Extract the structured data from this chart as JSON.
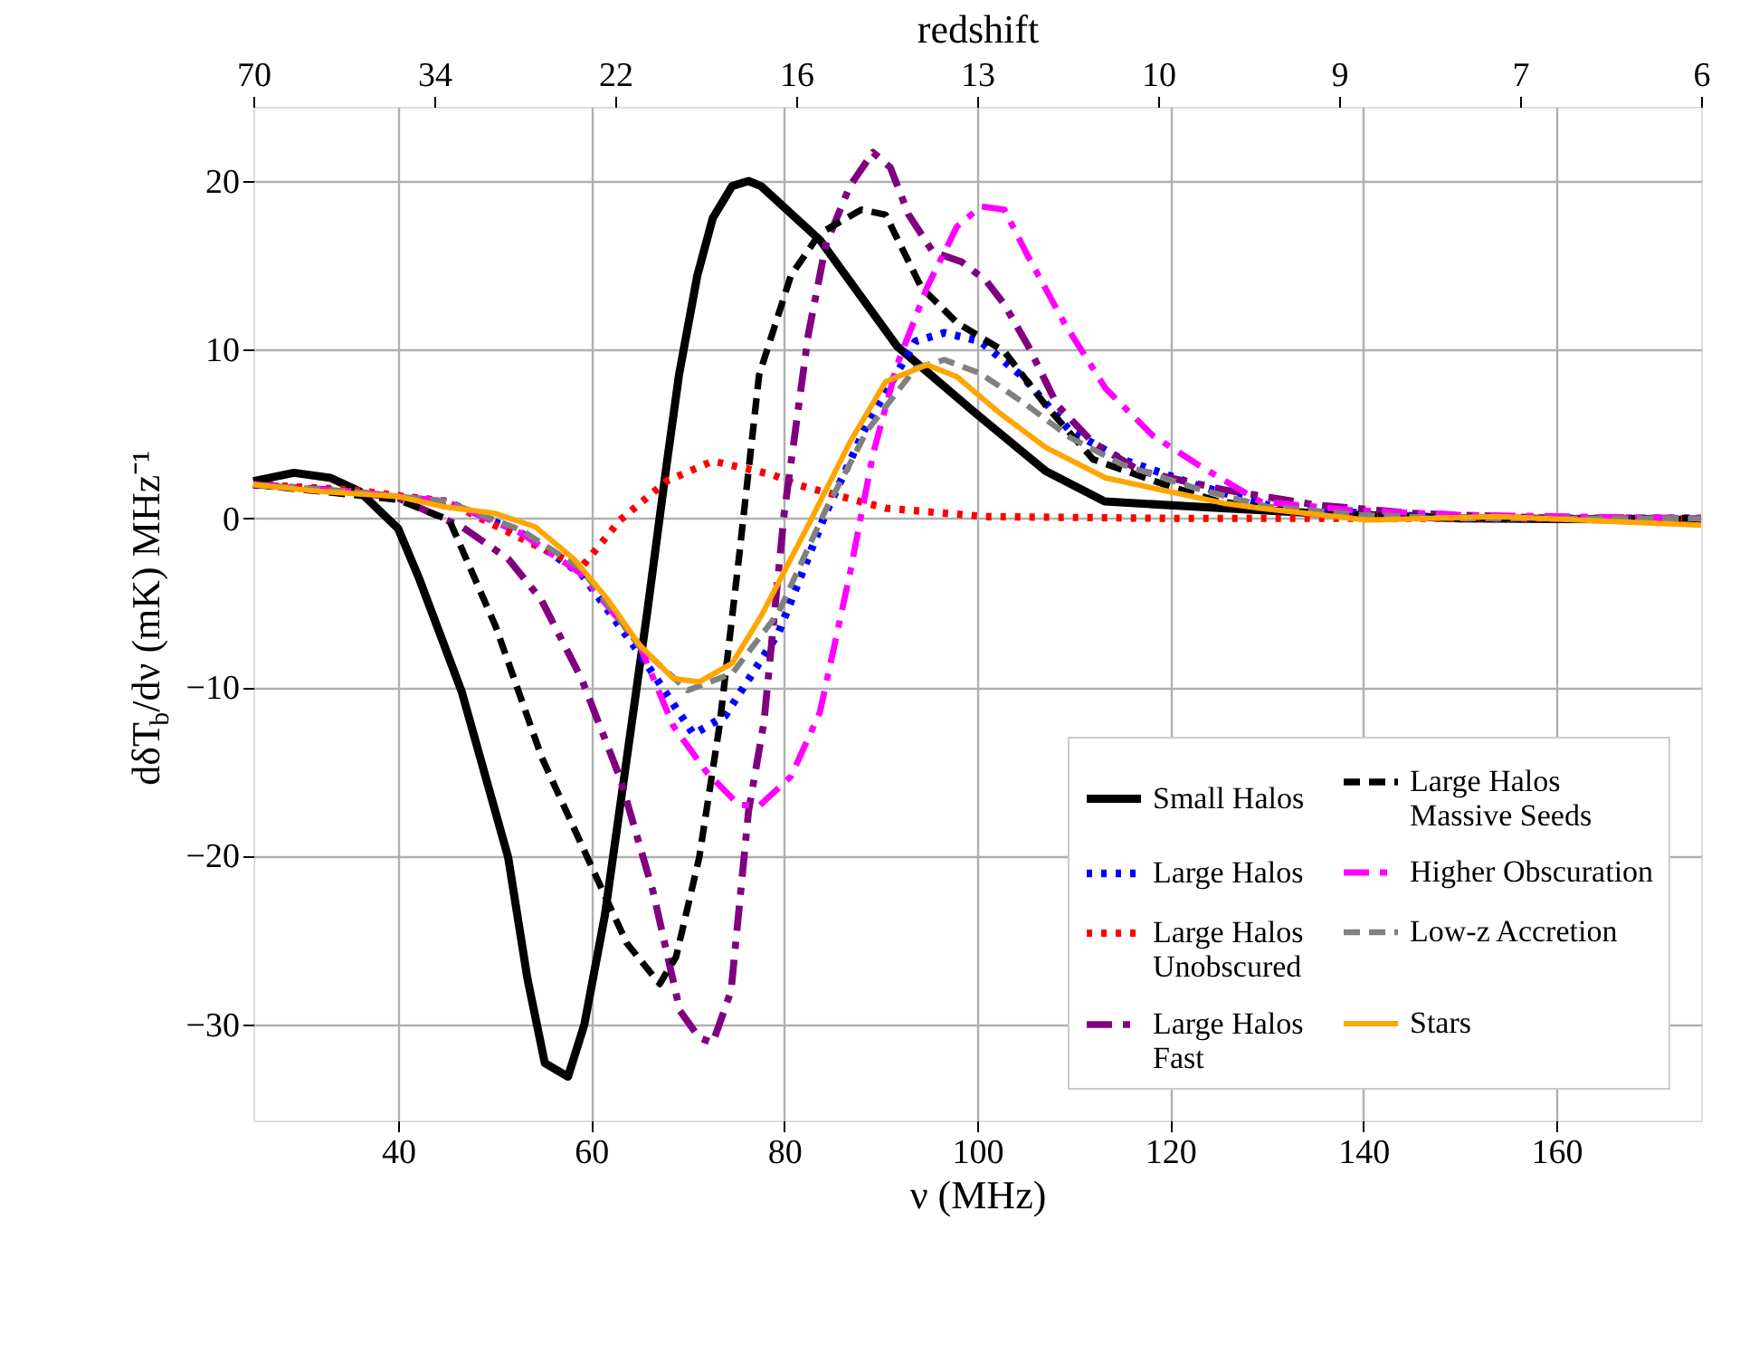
{
  "chart_data": {
    "type": "line",
    "xlabel": "ν (MHz)",
    "ylabel": "dδT$_{b}$/dν (mK) MHz⁻¹",
    "x2label": "redshift",
    "xlim": [
      25,
      175
    ],
    "xticks": [
      40,
      60,
      80,
      100,
      120,
      140,
      160
    ],
    "ylim": [
      -35.7,
      24.4
    ],
    "yticks": [
      -30,
      -20,
      -10,
      0,
      10,
      20
    ],
    "annotations": [
      "70",
      "34",
      "22",
      "16",
      "13",
      "10",
      "9",
      "7",
      "6"
    ],
    "grid": true,
    "legend": "bottom right",
    "marker": "none",
    "series": [
      {
        "name": "Small Halos",
        "color": "#000000",
        "line_style": "solid",
        "x": [
          25,
          29.2,
          33,
          36,
          40,
          42.2,
          46.6,
          51.4,
          53.4,
          55.2,
          57.6,
          59.3,
          61.4,
          63.7,
          65.8,
          67.8,
          69.1,
          71,
          72.6,
          74.6,
          76.3,
          77.6,
          83.7,
          91.7,
          99.7,
          107.1,
          113.2,
          125.5,
          135,
          150,
          175
        ],
        "values": [
          2.2,
          2.7,
          2.4,
          1.6,
          -0.6,
          -3.6,
          -10.3,
          -20.1,
          -27.3,
          -32.3,
          -33.1,
          -30.0,
          -23.6,
          -14.2,
          -5.6,
          3.1,
          8.5,
          14.4,
          17.8,
          19.7,
          20.0,
          19.7,
          16.5,
          10.2,
          6.3,
          2.8,
          1.0,
          0.6,
          0.3,
          0.0,
          -0.1
        ]
      },
      {
        "name": "Large Halos",
        "color": "#0000ff",
        "line_style": "dotted",
        "x": [
          25,
          35,
          45,
          52.8,
          59,
          65,
          70.6,
          73.9,
          79.4,
          84.3,
          88.6,
          93.6,
          96.6,
          100.3,
          104.7,
          109.6,
          115,
          123.1,
          130,
          140,
          150,
          175
        ],
        "values": [
          2.0,
          1.6,
          1.0,
          -0.9,
          -3.3,
          -8.0,
          -12.8,
          -11.7,
          -6.8,
          0.3,
          5.6,
          10.5,
          11.0,
          10.5,
          8.4,
          5.2,
          3.5,
          1.9,
          0.8,
          0.3,
          0.0,
          0.0
        ]
      },
      {
        "name": "Large Halos Unobscured",
        "color": "#ff0000",
        "line_style": "dotted",
        "x": [
          25,
          35,
          45,
          52.8,
          59,
          63,
          67.8,
          72.6,
          78.7,
          81.3,
          90.5,
          100.9,
          120,
          150,
          175
        ],
        "values": [
          2.0,
          1.7,
          1.0,
          -1.2,
          -2.9,
          -0.1,
          2.2,
          3.4,
          2.6,
          2.0,
          0.6,
          0.1,
          0.0,
          0.0,
          0.0
        ]
      },
      {
        "name": "Large Halos Fast",
        "color": "#800080",
        "line_style": "dashdot",
        "x": [
          25,
          35,
          40,
          46.6,
          51.4,
          54.8,
          59,
          63,
          66.4,
          69.2,
          71.2,
          72.6,
          74.5,
          76.3,
          77.9,
          80,
          82.5,
          84.3,
          86.8,
          89.2,
          91,
          92.9,
          95.4,
          98.4,
          100.9,
          102.8,
          105.3,
          108.3,
          112,
          116.9,
          125.5,
          135,
          145,
          160,
          175
        ],
        "values": [
          2.0,
          1.6,
          1.2,
          -0.5,
          -2.4,
          -4.8,
          -9.5,
          -15.4,
          -22.1,
          -29.2,
          -30.8,
          -31.1,
          -28.0,
          -17.4,
          -12.1,
          0.3,
          10.9,
          16.2,
          19.7,
          21.7,
          20.8,
          18.0,
          15.8,
          15.2,
          14.1,
          12.7,
          10.2,
          6.7,
          4.5,
          2.8,
          1.7,
          0.8,
          0.3,
          0.0,
          0.0
        ]
      },
      {
        "name": "Large Halos Massive Seeds",
        "color": "#000000",
        "line_style": "dashed",
        "x": [
          25,
          32,
          40,
          45.3,
          50.1,
          54.9,
          59.6,
          63.7,
          67.1,
          68.8,
          71.2,
          73.3,
          75.3,
          77.4,
          80.7,
          83.7,
          88,
          90.5,
          94.2,
          97.9,
          102.8,
          107.1,
          112,
          119.4,
          125,
          135,
          150,
          175
        ],
        "values": [
          2.0,
          1.6,
          1.1,
          -0.1,
          -6.4,
          -14.2,
          -20.1,
          -25.2,
          -27.6,
          -26.0,
          -20.1,
          -12.3,
          -2.4,
          8.5,
          14.4,
          16.9,
          18.3,
          18.0,
          13.7,
          11.6,
          9.9,
          6.7,
          3.5,
          2.0,
          1.0,
          0.3,
          0.0,
          0.0
        ]
      },
      {
        "name": "Higher Obscuration",
        "color": "#ff00ff",
        "line_style": "dashdot",
        "x": [
          25,
          35,
          45,
          52.8,
          59,
          65,
          68.5,
          71.9,
          75.3,
          77.5,
          80.7,
          83.7,
          86.8,
          89.2,
          91.7,
          94.8,
          97.9,
          100.4,
          102.8,
          105.3,
          109,
          113.3,
          118.2,
          123.1,
          129.3,
          138.5,
          150,
          175
        ],
        "values": [
          2.0,
          1.6,
          1.0,
          -0.9,
          -3.3,
          -7.5,
          -12.3,
          -15.0,
          -17.0,
          -17.0,
          -15.3,
          -11.5,
          -3.3,
          3.8,
          9.1,
          13.7,
          17.3,
          18.5,
          18.3,
          15.5,
          11.6,
          7.7,
          4.9,
          3.1,
          1.0,
          0.5,
          0.2,
          0.0
        ]
      },
      {
        "name": "Low-z Accretion",
        "color": "#808080",
        "line_style": "dashed",
        "x": [
          25,
          35,
          45,
          52.8,
          59,
          65,
          70,
          74.6,
          79.4,
          84.3,
          88.6,
          93.6,
          96.6,
          100.3,
          104.7,
          109.6,
          115,
          123.1,
          130,
          140,
          150,
          175
        ],
        "values": [
          2.0,
          1.6,
          1.0,
          -0.7,
          -3.0,
          -7.6,
          -10.2,
          -9.2,
          -5.6,
          0.5,
          5.2,
          8.9,
          9.4,
          8.6,
          6.9,
          4.8,
          3.2,
          1.7,
          0.7,
          0.2,
          0.0,
          0.0
        ]
      },
      {
        "name": "Stars",
        "color": "#ffa500",
        "line_style": "solid",
        "x": [
          25,
          32,
          40,
          44.6,
          50,
          54.2,
          58.2,
          61.7,
          65,
          68.5,
          71.2,
          74.6,
          77.6,
          82.5,
          86.8,
          90.5,
          94.8,
          97.9,
          102.2,
          107.1,
          113.3,
          125.5,
          129.3,
          140.3,
          153.8,
          175
        ],
        "values": [
          2.0,
          1.6,
          1.3,
          0.7,
          0.3,
          -0.5,
          -2.4,
          -4.8,
          -7.5,
          -9.5,
          -9.7,
          -8.6,
          -5.8,
          -0.4,
          4.5,
          8.1,
          9.1,
          8.4,
          6.3,
          4.2,
          2.4,
          0.9,
          0.6,
          -0.1,
          0.1,
          -0.4
        ]
      }
    ]
  }
}
